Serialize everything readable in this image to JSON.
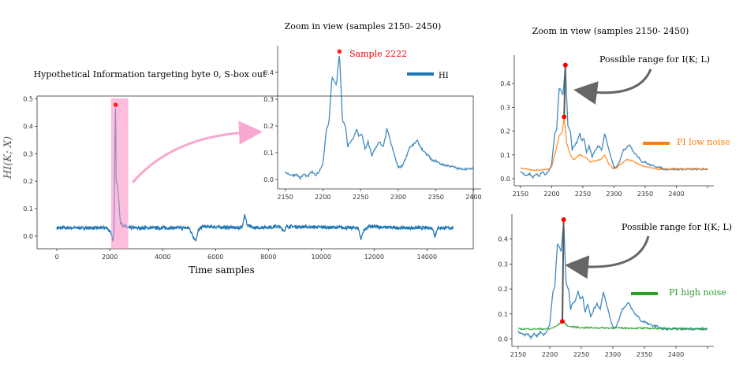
{
  "chart_data": [
    {
      "id": "full",
      "type": "line",
      "title": "Hypothetical Information targeting  byte 0, S-box out",
      "xlabel": "Time samples",
      "ylabel": "HI(K; X)",
      "xlim": [
        -750,
        15750
      ],
      "ylim": [
        -0.046,
        0.51
      ],
      "xticks": [
        0,
        2000,
        4000,
        6000,
        8000,
        10000,
        12000,
        14000
      ],
      "yticks": [
        0.0,
        0.1,
        0.2,
        0.3,
        0.4,
        0.5
      ],
      "highlight_range": [
        2050,
        2700
      ],
      "max_point": {
        "x": 2222,
        "y": 0.478
      },
      "series": [
        {
          "name": "HI",
          "color": "#1f77b4",
          "noise_std": 0.006,
          "points": [
            [
              0,
              0.03
            ],
            [
              1900,
              0.03
            ],
            [
              2050,
              0.01
            ],
            [
              2120,
              -0.015
            ],
            [
              2160,
              0.02
            ],
            [
              2200,
              0.38
            ],
            [
              2222,
              0.478
            ],
            [
              2240,
              0.2
            ],
            [
              2300,
              0.18
            ],
            [
              2350,
              0.12
            ],
            [
              2400,
              0.05
            ],
            [
              2500,
              0.04
            ],
            [
              2700,
              0.03
            ],
            [
              3300,
              0.03
            ],
            [
              5000,
              0.03
            ],
            [
              5150,
              0.0
            ],
            [
              5250,
              -0.015
            ],
            [
              5350,
              0.02
            ],
            [
              5500,
              0.035
            ],
            [
              7000,
              0.03
            ],
            [
              7100,
              0.08
            ],
            [
              7200,
              0.04
            ],
            [
              7400,
              0.03
            ],
            [
              8400,
              0.035
            ],
            [
              8600,
              0.02
            ],
            [
              8700,
              0.035
            ],
            [
              11400,
              0.03
            ],
            [
              11500,
              -0.01
            ],
            [
              11600,
              0.02
            ],
            [
              11800,
              0.035
            ],
            [
              13000,
              0.03
            ],
            [
              14200,
              0.03
            ],
            [
              14300,
              0.0
            ],
            [
              14400,
              0.03
            ],
            [
              15000,
              0.03
            ]
          ]
        }
      ]
    },
    {
      "id": "zoom_mid",
      "type": "line",
      "title": "Zoom in view (samples 2150- 2450)",
      "xlim": [
        2140,
        2410
      ],
      "ylim": [
        -0.035,
        0.5
      ],
      "xticks": [
        2150,
        2200,
        2250,
        2300,
        2350,
        2400
      ],
      "yticks": [
        0.0,
        0.1,
        0.2,
        0.3,
        0.4
      ],
      "max_point": {
        "x": 2222,
        "y": 0.478,
        "label": "Sample 2222"
      },
      "legend": [
        {
          "label": "HI",
          "color": "#1f77b4"
        }
      ],
      "series": [
        {
          "name": "HI",
          "color": "#1f77b4",
          "noise_std": 0.004,
          "range": [
            2150,
            2400
          ]
        }
      ]
    },
    {
      "id": "zoom_low",
      "type": "line",
      "title": "Zoom in view (samples 2150- 2450)",
      "xlim": [
        2140,
        2460
      ],
      "ylim": [
        -0.03,
        0.52
      ],
      "xticks": [
        2150,
        2200,
        2250,
        2300,
        2350,
        2400,
        2450
      ],
      "xtick_labels": [
        "2150",
        "2200",
        "2250",
        "2300",
        "2350",
        "2400",
        ""
      ],
      "yticks": [
        0.0,
        0.1,
        0.2,
        0.3,
        0.4
      ],
      "annotation": "Possible range for I(K; L)",
      "range_points": [
        {
          "x": 2222,
          "y": 0.478
        },
        {
          "x": 2220,
          "y": 0.26
        }
      ],
      "legend": [
        {
          "label": "PI  low noise",
          "color": "#ff7f0e"
        }
      ],
      "series": [
        {
          "name": "HI",
          "color": "#1f77b4",
          "noise_std": 0.004,
          "range": [
            2150,
            2450
          ]
        },
        {
          "name": "PI low noise",
          "color": "#ff7f0e",
          "noise_std": 0.002,
          "points": [
            [
              2150,
              0.045
            ],
            [
              2160,
              0.04
            ],
            [
              2170,
              0.035
            ],
            [
              2195,
              0.04
            ],
            [
              2200,
              0.05
            ],
            [
              2205,
              0.1
            ],
            [
              2212,
              0.18
            ],
            [
              2217,
              0.2
            ],
            [
              2220,
              0.26
            ],
            [
              2224,
              0.15
            ],
            [
              2230,
              0.1
            ],
            [
              2235,
              0.08
            ],
            [
              2245,
              0.1
            ],
            [
              2250,
              0.095
            ],
            [
              2255,
              0.09
            ],
            [
              2262,
              0.07
            ],
            [
              2270,
              0.075
            ],
            [
              2278,
              0.08
            ],
            [
              2285,
              0.1
            ],
            [
              2292,
              0.06
            ],
            [
              2300,
              0.04
            ],
            [
              2310,
              0.06
            ],
            [
              2320,
              0.08
            ],
            [
              2330,
              0.075
            ],
            [
              2340,
              0.06
            ],
            [
              2350,
              0.05
            ],
            [
              2370,
              0.04
            ],
            [
              2450,
              0.04
            ]
          ]
        }
      ]
    },
    {
      "id": "zoom_high",
      "type": "line",
      "xlim": [
        2140,
        2460
      ],
      "ylim": [
        -0.03,
        0.5
      ],
      "xticks": [
        2150,
        2200,
        2250,
        2300,
        2350,
        2400,
        2450
      ],
      "xtick_labels": [
        "2150",
        "2200",
        "2250",
        "2300",
        "2350",
        "2400",
        ""
      ],
      "yticks": [
        0.0,
        0.1,
        0.2,
        0.3,
        0.4
      ],
      "annotation": "Possible range for I(K; L)",
      "range_points": [
        {
          "x": 2222,
          "y": 0.478
        },
        {
          "x": 2220,
          "y": 0.07
        }
      ],
      "legend": [
        {
          "label": "PI  high noise",
          "color": "#2ca02c"
        }
      ],
      "series": [
        {
          "name": "HI",
          "color": "#1f77b4",
          "noise_std": 0.004,
          "range": [
            2150,
            2450
          ]
        },
        {
          "name": "PI high noise",
          "color": "#2ca02c",
          "noise_std": 0.003,
          "points": [
            [
              2150,
              0.04
            ],
            [
              2200,
              0.04
            ],
            [
              2210,
              0.05
            ],
            [
              2220,
              0.07
            ],
            [
              2230,
              0.05
            ],
            [
              2250,
              0.045
            ],
            [
              2450,
              0.04
            ]
          ]
        }
      ]
    }
  ],
  "hi_zoom_points": [
    [
      2150,
      0.03
    ],
    [
      2155,
      0.02
    ],
    [
      2160,
      0.015
    ],
    [
      2165,
      0.02
    ],
    [
      2170,
      0.005
    ],
    [
      2175,
      0.02
    ],
    [
      2180,
      0.01
    ],
    [
      2185,
      0.03
    ],
    [
      2190,
      0.015
    ],
    [
      2195,
      0.03
    ],
    [
      2200,
      0.06
    ],
    [
      2205,
      0.19
    ],
    [
      2208,
      0.21
    ],
    [
      2212,
      0.38
    ],
    [
      2215,
      0.37
    ],
    [
      2218,
      0.35
    ],
    [
      2222,
      0.475
    ],
    [
      2226,
      0.22
    ],
    [
      2230,
      0.2
    ],
    [
      2233,
      0.12
    ],
    [
      2236,
      0.14
    ],
    [
      2240,
      0.15
    ],
    [
      2245,
      0.19
    ],
    [
      2248,
      0.16
    ],
    [
      2252,
      0.17
    ],
    [
      2256,
      0.11
    ],
    [
      2260,
      0.14
    ],
    [
      2265,
      0.09
    ],
    [
      2270,
      0.12
    ],
    [
      2275,
      0.14
    ],
    [
      2280,
      0.12
    ],
    [
      2285,
      0.19
    ],
    [
      2290,
      0.14
    ],
    [
      2295,
      0.09
    ],
    [
      2300,
      0.045
    ],
    [
      2305,
      0.05
    ],
    [
      2310,
      0.08
    ],
    [
      2315,
      0.12
    ],
    [
      2320,
      0.13
    ],
    [
      2325,
      0.145
    ],
    [
      2330,
      0.12
    ],
    [
      2335,
      0.1
    ],
    [
      2340,
      0.09
    ],
    [
      2345,
      0.07
    ],
    [
      2350,
      0.07
    ],
    [
      2355,
      0.06
    ],
    [
      2360,
      0.055
    ],
    [
      2370,
      0.05
    ],
    [
      2380,
      0.04
    ],
    [
      2400,
      0.04
    ],
    [
      2450,
      0.04
    ]
  ]
}
